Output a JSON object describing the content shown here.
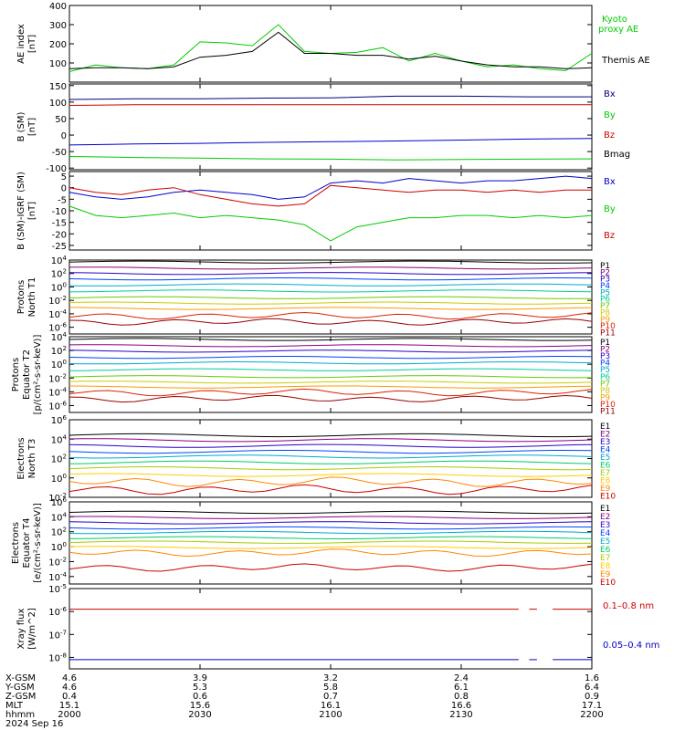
{
  "colors": {
    "black": "#000000",
    "green": "#00cc00",
    "red": "#cc0000",
    "blue": "#0000cc",
    "P1": "#000000",
    "P2": "#8b0080",
    "P3": "#2a00cc",
    "P4": "#0044ff",
    "P5": "#00aacc",
    "P6": "#00cc99",
    "P7": "#66cc00",
    "P8": "#cccc00",
    "P9": "#ff9900",
    "P10": "#dd2200",
    "P11": "#990000",
    "E1": "#000000",
    "E2": "#8b0080",
    "E3": "#2a00cc",
    "E4": "#0044ff",
    "E5": "#00aacc",
    "E6": "#00cc66",
    "E7": "#aacc00",
    "E8": "#ffcc00",
    "E9": "#ff8800",
    "E10": "#cc0000"
  },
  "chart_data": [
    {
      "type": "line",
      "panel": "ae",
      "ylabel": [
        "AE index",
        "[nT]"
      ],
      "ylim": [
        0,
        400
      ],
      "yticks": [
        100,
        200,
        300,
        400
      ],
      "x": [
        0,
        10,
        20,
        30,
        40,
        50,
        60,
        70,
        80,
        90,
        100,
        110,
        120,
        130,
        140,
        150,
        160,
        170,
        180,
        190,
        200
      ],
      "series": [
        {
          "name": "Kyoto proxy AE",
          "color": "#00cc00",
          "values": [
            55,
            90,
            75,
            70,
            90,
            210,
            205,
            190,
            300,
            160,
            150,
            155,
            180,
            110,
            150,
            110,
            80,
            90,
            70,
            60,
            150
          ]
        },
        {
          "name": "Themis AE",
          "color": "#000000",
          "values": [
            70,
            75,
            75,
            70,
            80,
            130,
            140,
            160,
            260,
            150,
            150,
            140,
            140,
            120,
            135,
            110,
            90,
            80,
            80,
            70,
            75
          ]
        }
      ]
    },
    {
      "type": "line",
      "panel": "bsm",
      "ylabel": [
        "B (SM)",
        "[nT]"
      ],
      "ylim": [
        -105,
        155
      ],
      "yticks": [
        -100,
        -50,
        0,
        50,
        100,
        150
      ],
      "x": [
        0,
        25,
        50,
        75,
        100,
        125,
        150,
        175,
        200
      ],
      "series": [
        {
          "name": "Bx",
          "color": "#000080",
          "values": [
            108,
            110,
            110,
            112,
            113,
            118,
            118,
            116,
            116
          ]
        },
        {
          "name": "By",
          "color": "#00cc00",
          "values": [
            -65,
            -68,
            -70,
            -72,
            -73,
            -75,
            -74,
            -73,
            -72
          ]
        },
        {
          "name": "Bz",
          "color": "#cc0000",
          "values": [
            90,
            92,
            92,
            92,
            92,
            92,
            92,
            92,
            92
          ]
        },
        {
          "name": "Bmag",
          "color": "#0000cc",
          "values": [
            -30,
            -27,
            -25,
            -22,
            -20,
            -18,
            -15,
            -12,
            -10
          ]
        }
      ]
    },
    {
      "type": "line",
      "panel": "digrf",
      "ylabel": [
        "B (SM)-IGRF (SM)",
        "[nT]"
      ],
      "ylim": [
        -27,
        7
      ],
      "yticks": [
        -25,
        -20,
        -15,
        -10,
        -5,
        0,
        5
      ],
      "x": [
        0,
        10,
        20,
        30,
        40,
        50,
        60,
        70,
        80,
        90,
        100,
        110,
        120,
        130,
        140,
        150,
        160,
        170,
        180,
        190,
        200
      ],
      "series": [
        {
          "name": "Bx",
          "color": "#0000cc",
          "values": [
            -2,
            -4,
            -5,
            -4,
            -2,
            -1,
            -2,
            -3,
            -5,
            -4,
            2,
            3,
            2,
            4,
            3,
            2,
            3,
            3,
            4,
            5,
            4
          ]
        },
        {
          "name": "By",
          "color": "#00cc00",
          "values": [
            -8,
            -12,
            -13,
            -12,
            -11,
            -13,
            -12,
            -13,
            -14,
            -16,
            -23,
            -17,
            -15,
            -13,
            -13,
            -12,
            -12,
            -13,
            -12,
            -13,
            -12
          ]
        },
        {
          "name": "Bz",
          "color": "#cc0000",
          "values": [
            0,
            -2,
            -3,
            -1,
            0,
            -3,
            -5,
            -7,
            -8,
            -7,
            1,
            0,
            -1,
            -2,
            -1,
            -1,
            -2,
            -1,
            -2,
            -1,
            -1
          ]
        }
      ]
    },
    {
      "type": "line",
      "panel": "p1",
      "log": true,
      "ylabel": [
        "Protons",
        "North T1"
      ],
      "ylim_exp": [
        -7,
        4
      ],
      "yticks_exp": [
        -6,
        -4,
        -2,
        0,
        2,
        4
      ],
      "labels": [
        "P1",
        "P2",
        "P3",
        "P4",
        "P5",
        "P6",
        "P7",
        "P8",
        "P9",
        "P10",
        "P11"
      ],
      "levels": [
        3.7,
        2.8,
        2.0,
        1.2,
        0.3,
        -0.6,
        -1.6,
        -2.4,
        -3.2,
        -4.3,
        -5.2
      ]
    },
    {
      "type": "line",
      "panel": "p2",
      "log": true,
      "ylabel": [
        "Protons",
        "Equator T2",
        "[p/(cm²-s-sr-keV)]"
      ],
      "ylim_exp": [
        -7,
        4
      ],
      "yticks_exp": [
        -6,
        -4,
        -2,
        0,
        2,
        4
      ],
      "labels": [
        "P1",
        "P2",
        "P3",
        "P4",
        "P5",
        "P6",
        "P7",
        "P8",
        "P9",
        "P10",
        "P11"
      ],
      "levels": [
        3.6,
        2.7,
        1.9,
        1.0,
        0.2,
        -0.8,
        -1.8,
        -2.6,
        -3.3,
        -4.1,
        -5.0
      ]
    },
    {
      "type": "line",
      "panel": "e1",
      "log": true,
      "ylabel": [
        "Electrons",
        "North T3"
      ],
      "ylim_exp": [
        -2,
        6
      ],
      "yticks_exp": [
        -2,
        0,
        2,
        4,
        6
      ],
      "labels": [
        "E1",
        "E2",
        "E3",
        "E4",
        "E5",
        "E6",
        "E7",
        "E8",
        "E9",
        "E10"
      ],
      "levels": [
        4.4,
        3.9,
        3.3,
        2.7,
        2.2,
        1.6,
        1.0,
        0.3,
        -0.4,
        -1.2
      ]
    },
    {
      "type": "line",
      "panel": "e2",
      "log": true,
      "ylabel": [
        "Electrons",
        "Equator T4",
        "[e/(cm²-s-sr-keV)]"
      ],
      "ylim_exp": [
        -5,
        6
      ],
      "yticks_exp": [
        -4,
        -2,
        0,
        2,
        4,
        6
      ],
      "labels": [
        "E1",
        "E2",
        "E3",
        "E4",
        "E5",
        "E6",
        "E7",
        "E8",
        "E9",
        "E10"
      ],
      "levels": [
        4.6,
        3.9,
        3.2,
        2.5,
        1.9,
        1.2,
        0.6,
        -0.1,
        -0.8,
        -2.8
      ]
    },
    {
      "type": "line",
      "panel": "xray",
      "log": true,
      "ylabel": [
        "Xray flux",
        "[W/m^2]"
      ],
      "ylim_exp": [
        -8.5,
        -5
      ],
      "yticks_exp": [
        -8,
        -7,
        -6,
        -5
      ],
      "series": [
        {
          "name": "0.1–0.8 nm",
          "color": "#cc0000",
          "level": -5.9
        },
        {
          "name": "0.05–0.4 nm",
          "color": "#0000cc",
          "level": -8.1
        }
      ]
    }
  ],
  "ae_labels": {
    "kyoto1": "Kyoto",
    "kyoto2": "proxy AE",
    "themis": "Themis AE"
  },
  "bsm_labels": {
    "bx": "Bx",
    "by": "By",
    "bz": "Bz",
    "bmag": "Bmag"
  },
  "digrf_labels": {
    "bx": "Bx",
    "by": "By",
    "bz": "Bz"
  },
  "xray_labels": {
    "long": "0.1–0.8 nm",
    "short": "0.05–0.4 nm"
  },
  "footer": {
    "rows": [
      {
        "label": "X-GSM",
        "values": [
          "4.6",
          "3.9",
          "3.2",
          "2.4",
          "1.6"
        ]
      },
      {
        "label": "Y-GSM",
        "values": [
          "4.6",
          "5.3",
          "5.8",
          "6.1",
          "6.4"
        ]
      },
      {
        "label": "Z-GSM",
        "values": [
          "0.4",
          "0.6",
          "0.7",
          "0.8",
          "0.9"
        ]
      },
      {
        "label": "MLT",
        "values": [
          "15.1",
          "15.6",
          "16.1",
          "16.6",
          "17.1"
        ]
      },
      {
        "label": "hhmm",
        "values": [
          "2000",
          "2030",
          "2100",
          "2130",
          "2200"
        ]
      }
    ],
    "date": "2024 Sep 16"
  }
}
